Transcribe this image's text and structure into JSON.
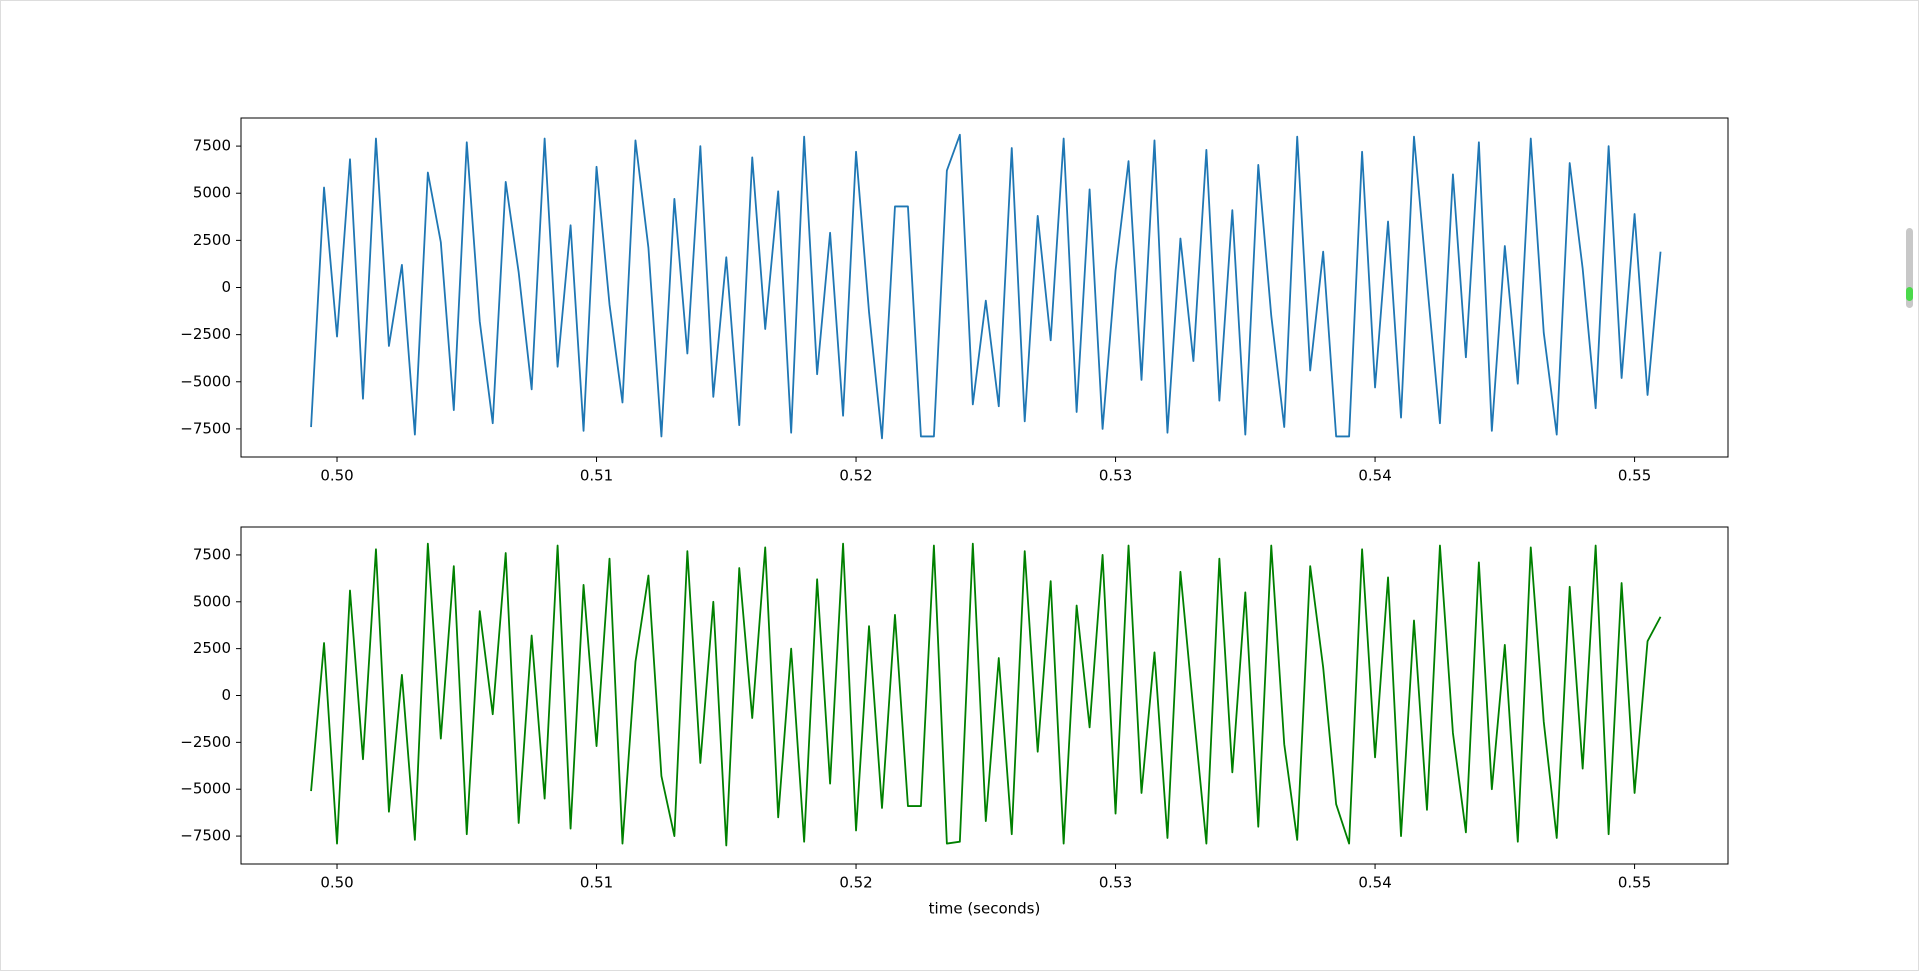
{
  "chart_data": [
    {
      "type": "line",
      "x": [
        0.499,
        0.4995,
        0.5,
        0.5005,
        0.501,
        0.5015,
        0.502,
        0.5025,
        0.503,
        0.5035,
        0.504,
        0.5045,
        0.505,
        0.5055,
        0.506,
        0.5065,
        0.507,
        0.5075,
        0.508,
        0.5085,
        0.509,
        0.5095,
        0.51,
        0.5105,
        0.511,
        0.5115,
        0.512,
        0.5125,
        0.513,
        0.5135,
        0.514,
        0.5145,
        0.515,
        0.5155,
        0.516,
        0.5165,
        0.517,
        0.5175,
        0.518,
        0.5185,
        0.519,
        0.5195,
        0.52,
        0.5205,
        0.521,
        0.5215,
        0.522,
        0.5225,
        0.523,
        0.5235,
        0.524,
        0.5245,
        0.525,
        0.5255,
        0.526,
        0.5265,
        0.527,
        0.5275,
        0.528,
        0.5285,
        0.529,
        0.5295,
        0.53,
        0.5305,
        0.531,
        0.5315,
        0.532,
        0.5325,
        0.533,
        0.5335,
        0.534,
        0.5345,
        0.535,
        0.5355,
        0.536,
        0.5365,
        0.537,
        0.5375,
        0.538,
        0.5385,
        0.539,
        0.5395,
        0.54,
        0.5405,
        0.541,
        0.5415,
        0.542,
        0.5425,
        0.543,
        0.5435,
        0.544,
        0.5445,
        0.545,
        0.5455,
        0.546,
        0.5465,
        0.547,
        0.5475,
        0.548,
        0.5485,
        0.549,
        0.5495,
        0.55,
        0.5505,
        0.551
      ],
      "series": [
        {
          "color": "#1f77b4",
          "values": [
            -7400,
            5300,
            -2600,
            6800,
            -5900,
            7900,
            -3100,
            1200,
            -7800,
            6100,
            2400,
            -6500,
            7700,
            -1800,
            -7200,
            5600,
            800,
            -5400,
            7900,
            -4200,
            3300,
            -7600,
            6400,
            -900,
            -6100,
            7800,
            2100,
            -7900,
            4700,
            -3500,
            7500,
            -5800,
            1600,
            -7300,
            6900,
            -2200,
            5100,
            -7700,
            8000,
            -4600,
            2900,
            -6800,
            7200,
            -1300,
            -8000,
            4300,
            4300,
            -7900,
            -7900,
            6200,
            8100,
            -6200,
            -700,
            -6300,
            7400,
            -7100,
            3800,
            -2800,
            7900,
            -6600,
            5200,
            -7500,
            900,
            6700,
            -4900,
            7800,
            -7700,
            2600,
            -3900,
            7300,
            -6000,
            4100,
            -7800,
            6500,
            -1500,
            -7400,
            8000,
            -4400,
            1900,
            -7900,
            -7900,
            7200,
            -5300,
            3500,
            -6900,
            8000,
            300,
            -7200,
            6000,
            -3700,
            7700,
            -7600,
            2200,
            -5100,
            7900,
            -2400,
            -7800,
            6600,
            1000,
            -6400,
            7500,
            -4800,
            3900,
            -5700,
            1900
          ]
        }
      ],
      "xlim": [
        0.4963,
        0.5536
      ],
      "xticks": [
        {
          "value": 0.5,
          "label": "0.50"
        },
        {
          "value": 0.51,
          "label": "0.51"
        },
        {
          "value": 0.52,
          "label": "0.52"
        },
        {
          "value": 0.53,
          "label": "0.53"
        },
        {
          "value": 0.54,
          "label": "0.54"
        },
        {
          "value": 0.55,
          "label": "0.55"
        }
      ],
      "ylim": [
        -8990,
        8990
      ],
      "yticks": [
        {
          "value": -7500,
          "label": "−7500"
        },
        {
          "value": -5000,
          "label": "−5000"
        },
        {
          "value": -2500,
          "label": "−2500"
        },
        0,
        2500,
        5000,
        7500
      ]
    },
    {
      "type": "line",
      "x": [
        0.499,
        0.4995,
        0.5,
        0.5005,
        0.501,
        0.5015,
        0.502,
        0.5025,
        0.503,
        0.5035,
        0.504,
        0.5045,
        0.505,
        0.5055,
        0.506,
        0.5065,
        0.507,
        0.5075,
        0.508,
        0.5085,
        0.509,
        0.5095,
        0.51,
        0.5105,
        0.511,
        0.5115,
        0.512,
        0.5125,
        0.513,
        0.5135,
        0.514,
        0.5145,
        0.515,
        0.5155,
        0.516,
        0.5165,
        0.517,
        0.5175,
        0.518,
        0.5185,
        0.519,
        0.5195,
        0.52,
        0.5205,
        0.521,
        0.5215,
        0.522,
        0.5225,
        0.523,
        0.5235,
        0.524,
        0.5245,
        0.525,
        0.5255,
        0.526,
        0.5265,
        0.527,
        0.5275,
        0.528,
        0.5285,
        0.529,
        0.5295,
        0.53,
        0.5305,
        0.531,
        0.5315,
        0.532,
        0.5325,
        0.533,
        0.5335,
        0.534,
        0.5345,
        0.535,
        0.5355,
        0.536,
        0.5365,
        0.537,
        0.5375,
        0.538,
        0.5385,
        0.539,
        0.5395,
        0.54,
        0.5405,
        0.541,
        0.5415,
        0.542,
        0.5425,
        0.543,
        0.5435,
        0.544,
        0.5445,
        0.545,
        0.5455,
        0.546,
        0.5465,
        0.547,
        0.5475,
        0.548,
        0.5485,
        0.549,
        0.5495,
        0.55,
        0.5505,
        0.551
      ],
      "series": [
        {
          "color": "#008000",
          "values": [
            -5100,
            2800,
            -7900,
            5600,
            -3400,
            7800,
            -6200,
            1100,
            -7700,
            8100,
            -2300,
            6900,
            -7400,
            4500,
            -1000,
            7600,
            -6800,
            3200,
            -5500,
            8000,
            -7100,
            5900,
            -2700,
            7300,
            -7900,
            1800,
            6400,
            -4300,
            -7500,
            7700,
            -3600,
            5000,
            -8000,
            6800,
            -1200,
            7900,
            -6500,
            2500,
            -7800,
            6200,
            -4700,
            8100,
            -7200,
            3700,
            -6000,
            4300,
            -5900,
            -5900,
            8000,
            -7900,
            -7800,
            8100,
            -6700,
            2000,
            -7400,
            7700,
            -3000,
            6100,
            -7900,
            4800,
            -1700,
            7500,
            -6300,
            8000,
            -5200,
            2300,
            -7600,
            6600,
            -800,
            -7900,
            7300,
            -4100,
            5500,
            -7000,
            8000,
            -2600,
            -7700,
            6900,
            1500,
            -5800,
            -7900,
            7800,
            -3300,
            6300,
            -7500,
            4000,
            -6100,
            8000,
            -2000,
            -7300,
            7100,
            -5000,
            2700,
            -7800,
            7900,
            -1400,
            -7600,
            5800,
            -3900,
            8000,
            -7400,
            6000,
            -5200,
            2900,
            4200
          ]
        }
      ],
      "xlim": [
        0.4963,
        0.5536
      ],
      "xticks": [
        {
          "value": 0.5,
          "label": "0.50"
        },
        {
          "value": 0.51,
          "label": "0.51"
        },
        {
          "value": 0.52,
          "label": "0.52"
        },
        {
          "value": 0.53,
          "label": "0.53"
        },
        {
          "value": 0.54,
          "label": "0.54"
        },
        {
          "value": 0.55,
          "label": "0.55"
        }
      ],
      "ylim": [
        -8990,
        8990
      ],
      "yticks": [
        {
          "value": -7500,
          "label": "−7500"
        },
        {
          "value": -5000,
          "label": "−5000"
        },
        {
          "value": -2500,
          "label": "−2500"
        },
        0,
        2500,
        5000,
        7500
      ],
      "xlabel": "time (seconds)"
    }
  ]
}
